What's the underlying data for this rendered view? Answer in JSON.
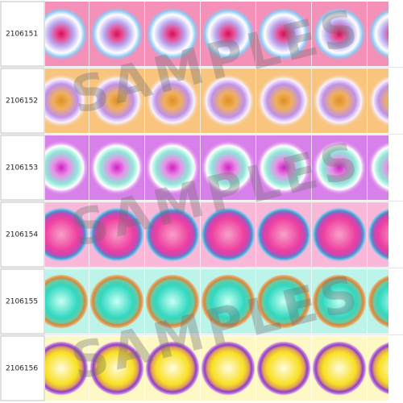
{
  "watermark": "SAMPLES",
  "rows": [
    {
      "code": "2106151"
    },
    {
      "code": "2106152"
    },
    {
      "code": "2106153"
    },
    {
      "code": "2106154"
    },
    {
      "code": "2106155"
    },
    {
      "code": "2106156"
    }
  ]
}
